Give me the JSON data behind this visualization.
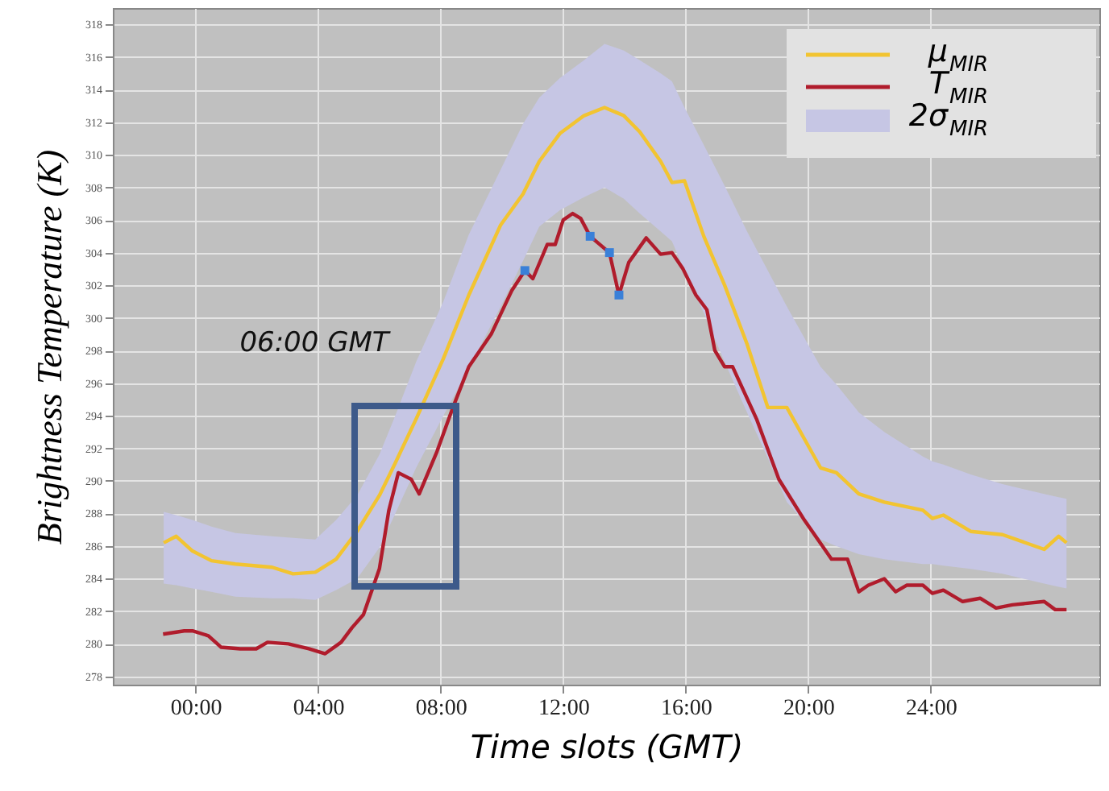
{
  "chart_data": {
    "type": "line",
    "xlabel": "Time slots (GMT)",
    "ylabel": "Brightness Temperature (K)",
    "xlim": [
      -2.7,
      29.5
    ],
    "ylim": [
      277.5,
      319
    ],
    "xticks": [
      {
        "value": 0,
        "label": "00:00"
      },
      {
        "value": 4,
        "label": "04:00"
      },
      {
        "value": 8,
        "label": "08:00"
      },
      {
        "value": 12,
        "label": "12:00"
      },
      {
        "value": 16,
        "label": "16:00"
      },
      {
        "value": 20,
        "label": "20:00"
      },
      {
        "value": 24,
        "label": "24:00"
      }
    ],
    "yticks": [
      278,
      280,
      282,
      284,
      286,
      288,
      290,
      292,
      294,
      296,
      298,
      300,
      302,
      304,
      306,
      308,
      310,
      312,
      314,
      316,
      318
    ],
    "grid": true,
    "legend": "top right",
    "annotations": [
      "06:00 GMT"
    ],
    "series": [
      {
        "name": "μ$_{MIR}$",
        "type": "line",
        "color": "#f2c431",
        "x": [
          -1.04,
          -0.63,
          -0.1,
          0.52,
          1.3,
          2.5,
          3.18,
          3.91,
          4.59,
          5.27,
          6.0,
          6.52,
          7.2,
          8.09,
          8.92,
          9.96,
          10.69,
          11.22,
          11.89,
          12.68,
          13.35,
          13.98,
          14.5,
          15.18,
          15.55,
          15.96,
          16.59,
          17.27,
          18.0,
          18.68,
          19.3,
          20.4,
          20.92,
          21.65,
          22.48,
          23.74,
          24.05,
          24.41,
          25.3,
          26.34,
          27.7,
          28.17,
          28.43
        ],
        "values": [
          286.2,
          286.6,
          285.7,
          285.1,
          284.9,
          284.7,
          284.3,
          284.4,
          285.2,
          286.9,
          289.1,
          291.1,
          293.8,
          297.5,
          301.4,
          305.7,
          307.6,
          309.6,
          311.3,
          312.4,
          312.9,
          312.4,
          311.4,
          309.6,
          308.3,
          308.4,
          305.0,
          302.0,
          298.4,
          294.5,
          294.5,
          290.8,
          290.5,
          289.2,
          288.7,
          288.2,
          287.7,
          287.9,
          286.9,
          286.7,
          285.8,
          286.6,
          286.2
        ],
        "lower": [
          283.7,
          283.6,
          283.4,
          283.2,
          282.9,
          282.8,
          282.8,
          282.7,
          283.3,
          284.0,
          285.9,
          288.0,
          290.8,
          294.0,
          296.9,
          300.7,
          303.5,
          305.6,
          306.6,
          307.4,
          308.0,
          307.3,
          306.4,
          305.3,
          304.7,
          302.9,
          300.3,
          297.3,
          294.2,
          291.4,
          288.7,
          286.4,
          286.0,
          285.5,
          285.2,
          284.9,
          284.9,
          284.8,
          284.6,
          284.3,
          283.7,
          283.5,
          283.4
        ],
        "upper": [
          288.1,
          287.9,
          287.6,
          287.2,
          286.8,
          286.6,
          286.5,
          286.4,
          287.6,
          289.1,
          291.6,
          294.0,
          297.3,
          301.0,
          305.1,
          309.1,
          311.9,
          313.5,
          314.7,
          315.8,
          316.8,
          316.4,
          315.8,
          315.0,
          314.5,
          312.9,
          310.6,
          308.1,
          305.3,
          302.9,
          300.7,
          297.0,
          295.9,
          294.2,
          293.0,
          291.5,
          291.2,
          291.0,
          290.4,
          289.8,
          289.2,
          289.0,
          288.9
        ]
      },
      {
        "name": "T$_{MIR}$",
        "type": "line",
        "color": "#b01c2c",
        "x": [
          -1.06,
          -0.37,
          -0.1,
          0.42,
          0.83,
          1.46,
          1.98,
          2.35,
          3.03,
          3.7,
          4.23,
          4.75,
          5.11,
          5.48,
          6.0,
          6.31,
          6.62,
          7.04,
          7.3,
          7.88,
          8.4,
          8.92,
          9.65,
          10.33,
          10.75,
          11.01,
          11.48,
          11.74,
          12.0,
          12.31,
          12.57,
          12.88,
          13.51,
          13.82,
          14.14,
          14.71,
          15.18,
          15.55,
          15.91,
          16.33,
          16.69,
          16.95,
          17.27,
          17.53,
          18.31,
          19.04,
          19.87,
          20.76,
          21.28,
          21.65,
          21.96,
          22.48,
          22.85,
          23.21,
          23.74,
          24.05,
          24.41,
          25.04,
          25.61,
          26.13,
          26.66,
          27.7,
          28.06,
          28.43
        ],
        "values": [
          280.6,
          280.8,
          280.8,
          280.5,
          279.8,
          279.7,
          279.7,
          280.1,
          280.0,
          279.7,
          279.4,
          280.1,
          281.0,
          281.8,
          284.6,
          288.2,
          290.5,
          290.1,
          289.2,
          291.8,
          294.5,
          297.0,
          299.0,
          301.7,
          302.9,
          302.4,
          304.5,
          304.5,
          306.0,
          306.4,
          306.1,
          305.0,
          304.0,
          301.4,
          303.4,
          304.9,
          303.9,
          304.0,
          303.0,
          301.4,
          300.5,
          298.0,
          297.0,
          297.0,
          293.8,
          290.1,
          287.6,
          285.2,
          285.2,
          283.2,
          283.6,
          284.0,
          283.2,
          283.6,
          283.6,
          283.1,
          283.3,
          282.6,
          282.8,
          282.2,
          282.4,
          282.6,
          282.1,
          282.1
        ]
      },
      {
        "name": "2σ$_{MIR}$",
        "type": "area",
        "color": "#c6c6e4"
      },
      {
        "type": "scatter",
        "marker": "square",
        "color": "#3a80d8",
        "x": [
          10.75,
          12.88,
          13.51,
          13.82
        ],
        "values": [
          302.9,
          305.0,
          304.0,
          301.4
        ]
      }
    ]
  }
}
